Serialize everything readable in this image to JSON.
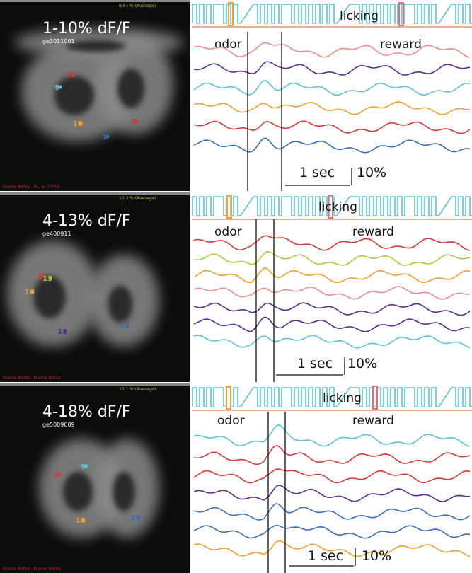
{
  "panels": [
    {
      "title": "1-10% dF/F",
      "id": "ge3011001",
      "avg_label": "9.51 % (Average)",
      "frame_label": "Frame 88/91 - Fr.. to 77/79",
      "rois": [
        "12",
        "9",
        "10",
        "8",
        "1"
      ],
      "licking": "licking",
      "odor": "odor",
      "reward": "reward",
      "time_scale": "1 sec",
      "amp_scale": "10%"
    },
    {
      "title": "4-13% dF/F",
      "id": "ge400911",
      "avg_label": "10.3 % (Average)",
      "frame_label": "Frame 80/88 - Frame 80/32",
      "rois": [
        "8",
        "13",
        "10",
        "12",
        "14"
      ],
      "licking": "licking",
      "odor": "odor",
      "reward": "reward",
      "time_scale": "1 sec",
      "amp_scale": "10%"
    },
    {
      "title": "4-18% dF/F",
      "id": "ge5009009",
      "avg_label": "10.1 % (Average)",
      "frame_label": "Frame 80/93 - Frame 86/96",
      "rois": [
        "8",
        "9",
        "10",
        "11"
      ],
      "licking": "licking",
      "odor": "odor",
      "reward": "reward",
      "time_scale": "1 sec",
      "amp_scale": "10%"
    }
  ]
}
